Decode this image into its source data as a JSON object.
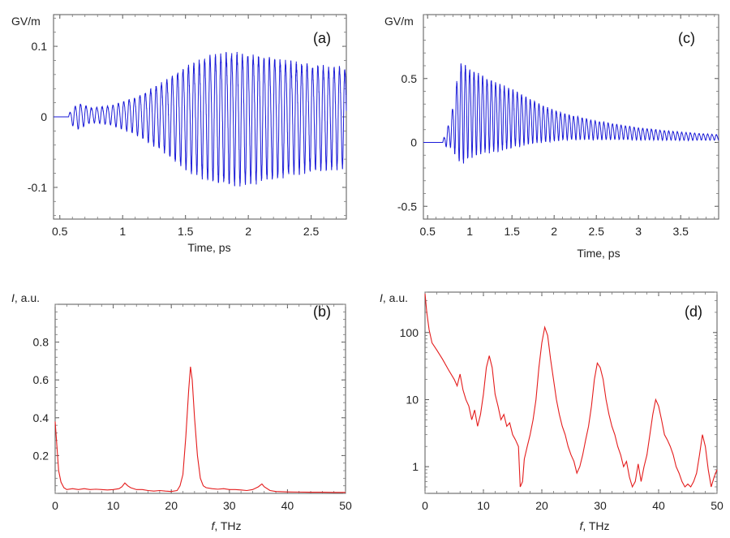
{
  "chart_data": [
    {
      "id": "a",
      "type": "line",
      "panel_label": "(a)",
      "ylabel": "GV/m",
      "xlabel": "Time, ps",
      "xlim": [
        0.45,
        2.78
      ],
      "ylim": [
        -0.145,
        0.145
      ],
      "x_ticks": [
        0.5,
        1,
        1.5,
        2,
        2.5
      ],
      "x_tick_labels": [
        "0.5",
        "1",
        "1.5",
        "2",
        "2.5"
      ],
      "y_ticks": [
        0.1,
        0,
        -0.1
      ],
      "y_tick_labels": [
        "0.1",
        "0",
        "-0.1"
      ],
      "color": "#1a1ad8",
      "scale": "linear",
      "signal": {
        "kind": "oscillation",
        "start": 0.57,
        "frequency_thz": 23.3,
        "dc_offset": 0.003,
        "envelope_x": [
          0.45,
          0.56,
          0.6,
          0.65,
          0.75,
          0.9,
          1.1,
          1.3,
          1.5,
          1.7,
          1.85,
          1.95,
          2.1,
          2.3,
          2.5,
          2.78
        ],
        "envelope_y": [
          0,
          0,
          0.012,
          0.018,
          0.01,
          0.013,
          0.025,
          0.045,
          0.07,
          0.085,
          0.09,
          0.09,
          0.086,
          0.078,
          0.072,
          0.068
        ]
      }
    },
    {
      "id": "b",
      "type": "line",
      "panel_label": "(b)",
      "ylabel_italic": "I",
      "ylabel_rest": ", a.u.",
      "xlabel_italic": "f",
      "xlabel_rest": ", THz",
      "xlim": [
        0,
        50
      ],
      "ylim": [
        0,
        1.0
      ],
      "x_ticks": [
        0,
        10,
        20,
        30,
        40,
        50
      ],
      "x_tick_labels": [
        "0",
        "10",
        "20",
        "30",
        "40",
        "50"
      ],
      "y_ticks": [
        0.8,
        0.6,
        0.4,
        0.2
      ],
      "y_tick_labels": [
        "0.8",
        "0.6",
        "0.4",
        "0.2"
      ],
      "color": "#e41c1c",
      "scale": "linear",
      "x": [
        0,
        0.3,
        0.6,
        1.0,
        1.5,
        2,
        3,
        4,
        5,
        6,
        7,
        8,
        9,
        10,
        11,
        11.5,
        12,
        12.5,
        13,
        14,
        15,
        16,
        17,
        18,
        19,
        20,
        21,
        21.5,
        22,
        22.5,
        23,
        23.3,
        23.6,
        24,
        24.5,
        25,
        25.5,
        26,
        27,
        28,
        29,
        30,
        31,
        32,
        33,
        34,
        35,
        35.6,
        36,
        37,
        38,
        40,
        42,
        44,
        46,
        48,
        50
      ],
      "y": [
        0.38,
        0.25,
        0.12,
        0.06,
        0.03,
        0.02,
        0.025,
        0.02,
        0.025,
        0.02,
        0.022,
        0.02,
        0.018,
        0.02,
        0.025,
        0.035,
        0.055,
        0.04,
        0.03,
        0.02,
        0.02,
        0.015,
        0.012,
        0.015,
        0.012,
        0.01,
        0.015,
        0.04,
        0.1,
        0.3,
        0.55,
        0.67,
        0.6,
        0.4,
        0.2,
        0.08,
        0.04,
        0.03,
        0.025,
        0.022,
        0.025,
        0.02,
        0.02,
        0.018,
        0.015,
        0.02,
        0.035,
        0.05,
        0.035,
        0.015,
        0.01,
        0.008,
        0.007,
        0.006,
        0.006,
        0.005,
        0.005
      ]
    },
    {
      "id": "c",
      "type": "line",
      "panel_label": "(c)",
      "ylabel": "GV/m",
      "xlabel": "Time, ps",
      "xlim": [
        0.45,
        3.95
      ],
      "ylim": [
        -0.6,
        1.0
      ],
      "x_ticks": [
        0.5,
        1,
        1.5,
        2,
        2.5,
        3,
        3.5
      ],
      "x_tick_labels": [
        "0.5",
        "1",
        "1.5",
        "2",
        "2.5",
        "3",
        "3.5"
      ],
      "y_ticks": [
        0.5,
        0,
        -0.5
      ],
      "y_tick_labels": [
        "0.5",
        "0",
        "-0.5"
      ],
      "color": "#1a1ad8",
      "scale": "linear",
      "signal": {
        "kind": "oscillation",
        "start": 0.68,
        "frequency_thz": 19.5,
        "dc_offset_x": [
          0.45,
          0.8,
          0.9,
          1.0,
          1.5,
          2.0,
          2.5,
          3.0,
          3.5,
          3.95
        ],
        "dc_offset_y": [
          0,
          0.15,
          0.25,
          0.25,
          0.2,
          0.14,
          0.1,
          0.07,
          0.05,
          0.04
        ],
        "envelope_x": [
          0.45,
          0.67,
          0.72,
          0.78,
          0.85,
          0.9,
          1.0,
          1.2,
          1.5,
          1.8,
          2.1,
          2.5,
          3.0,
          3.5,
          3.95
        ],
        "envelope_y": [
          0,
          0,
          0.06,
          0.12,
          0.3,
          0.38,
          0.33,
          0.28,
          0.22,
          0.15,
          0.1,
          0.07,
          0.045,
          0.03,
          0.02
        ]
      }
    },
    {
      "id": "d",
      "type": "line",
      "panel_label": "(d)",
      "ylabel_italic": "I",
      "ylabel_rest": ", a.u.",
      "xlabel_italic": "f",
      "xlabel_rest": ", THz",
      "xlim": [
        0,
        50
      ],
      "ylim": [
        0.4,
        400
      ],
      "x_ticks": [
        0,
        10,
        20,
        30,
        40,
        50
      ],
      "x_tick_labels": [
        "0",
        "10",
        "20",
        "30",
        "40",
        "50"
      ],
      "y_ticks": [
        100,
        10,
        1
      ],
      "y_tick_labels": [
        "100",
        "10",
        "1"
      ],
      "color": "#e41c1c",
      "scale": "log",
      "x": [
        0,
        0.3,
        0.7,
        1.2,
        2,
        3,
        4,
        5,
        5.5,
        6,
        6.5,
        7,
        7.5,
        8,
        8.5,
        9,
        9.5,
        10,
        10.5,
        11,
        11.5,
        12,
        12.5,
        13,
        13.5,
        14,
        14.5,
        15,
        15.5,
        16,
        16.3,
        16.7,
        17,
        17.5,
        18,
        18.5,
        19,
        19.5,
        20,
        20.5,
        21,
        21.5,
        22,
        22.5,
        23,
        23.5,
        24,
        24.5,
        25,
        25.5,
        26,
        26.5,
        27,
        27.5,
        28,
        28.5,
        29,
        29.5,
        30,
        30.5,
        31,
        31.5,
        32,
        32.5,
        33,
        33.5,
        34,
        34.5,
        35,
        35.5,
        36,
        36.5,
        37,
        37.5,
        38,
        38.5,
        39,
        39.5,
        40,
        40.5,
        41,
        41.5,
        42,
        42.5,
        43,
        43.5,
        44,
        44.5,
        45,
        45.5,
        46,
        46.5,
        47,
        47.5,
        48,
        48.5,
        49,
        49.5,
        50
      ],
      "y": [
        380,
        200,
        110,
        70,
        55,
        40,
        28,
        20,
        16,
        24,
        14,
        10,
        8,
        5,
        7,
        4,
        6,
        12,
        30,
        45,
        30,
        12,
        8,
        5,
        6,
        4,
        4.5,
        3,
        2.5,
        2,
        0.5,
        0.6,
        1.3,
        2,
        3,
        5,
        10,
        30,
        70,
        120,
        90,
        40,
        20,
        10,
        6,
        4,
        3,
        2,
        1.5,
        1.2,
        0.8,
        1,
        1.5,
        2.5,
        4,
        8,
        20,
        35,
        30,
        20,
        10,
        6,
        4,
        3,
        2,
        1.5,
        1,
        1.2,
        0.7,
        0.5,
        0.6,
        1.1,
        0.6,
        1.0,
        1.5,
        3,
        6,
        10,
        8,
        5,
        3,
        2.5,
        2,
        1.5,
        1,
        0.8,
        0.6,
        0.5,
        0.55,
        0.5,
        0.6,
        0.8,
        1.5,
        3,
        2,
        0.9,
        0.5,
        0.7,
        0.9
      ]
    }
  ]
}
